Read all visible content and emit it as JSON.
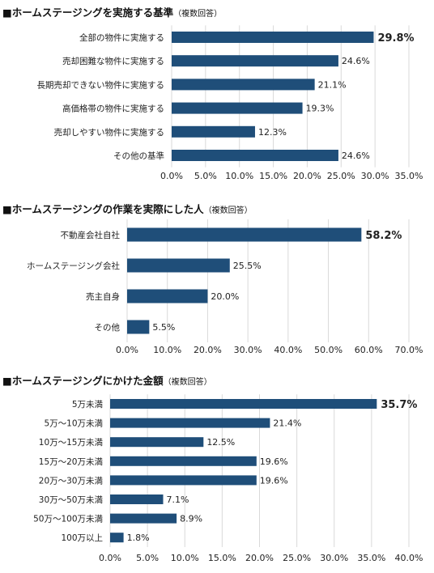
{
  "bar_color": "#1f4e79",
  "grid_color": "#d9d9d9",
  "chart_data": [
    {
      "type": "bar",
      "orientation": "horizontal",
      "title": "■ホームステージングを実施する基準",
      "title_note": "（複数回答）",
      "categories": [
        "全部の物件に実施する",
        "売却困難な物件に実施する",
        "長期売却できない物件に実施する",
        "高価格帯の物件に実施する",
        "売却しやすい物件に実施する",
        "その他の基準"
      ],
      "values": [
        29.8,
        24.6,
        21.1,
        19.3,
        12.3,
        24.6
      ],
      "value_labels": [
        "29.8%",
        "24.6%",
        "21.1%",
        "19.3%",
        "12.3%",
        "24.6%"
      ],
      "highlight_index": 0,
      "xlim": [
        0,
        35
      ],
      "xticks": [
        "0.0%",
        "5.0%",
        "10.0%",
        "15.0%",
        "20.0%",
        "25.0%",
        "30.0%",
        "35.0%"
      ],
      "grid": true
    },
    {
      "type": "bar",
      "orientation": "horizontal",
      "title": "■ホームステージングの作業を実際にした人",
      "title_note": "（複数回答）",
      "categories": [
        "不動産会社自社",
        "ホームステージング会社",
        "売主自身",
        "その他"
      ],
      "values": [
        58.2,
        25.5,
        20.0,
        5.5
      ],
      "value_labels": [
        "58.2%",
        "25.5%",
        "20.0%",
        "5.5%"
      ],
      "highlight_index": 0,
      "xlim": [
        0,
        70
      ],
      "xticks": [
        "0.0%",
        "10.0%",
        "20.0%",
        "30.0%",
        "40.0%",
        "50.0%",
        "60.0%",
        "70.0%"
      ],
      "grid": true
    },
    {
      "type": "bar",
      "orientation": "horizontal",
      "title": "■ホームステージングにかけた金額",
      "title_note": "（複数回答）",
      "categories": [
        "5万未満",
        "5万～10万未満",
        "10万～15万未満",
        "15万～20万未満",
        "20万～30万未満",
        "30万～50万未満",
        "50万～100万未満",
        "100万以上"
      ],
      "values": [
        35.7,
        21.4,
        12.5,
        19.6,
        19.6,
        7.1,
        8.9,
        1.8
      ],
      "value_labels": [
        "35.7%",
        "21.4%",
        "12.5%",
        "19.6%",
        "19.6%",
        "7.1%",
        "8.9%",
        "1.8%"
      ],
      "highlight_index": 0,
      "xlim": [
        0,
        40
      ],
      "xticks": [
        "0.0%",
        "5.0%",
        "10.0%",
        "15.0%",
        "20.0%",
        "25.0%",
        "30.0%",
        "35.0%",
        "40.0%"
      ],
      "grid": true
    }
  ]
}
